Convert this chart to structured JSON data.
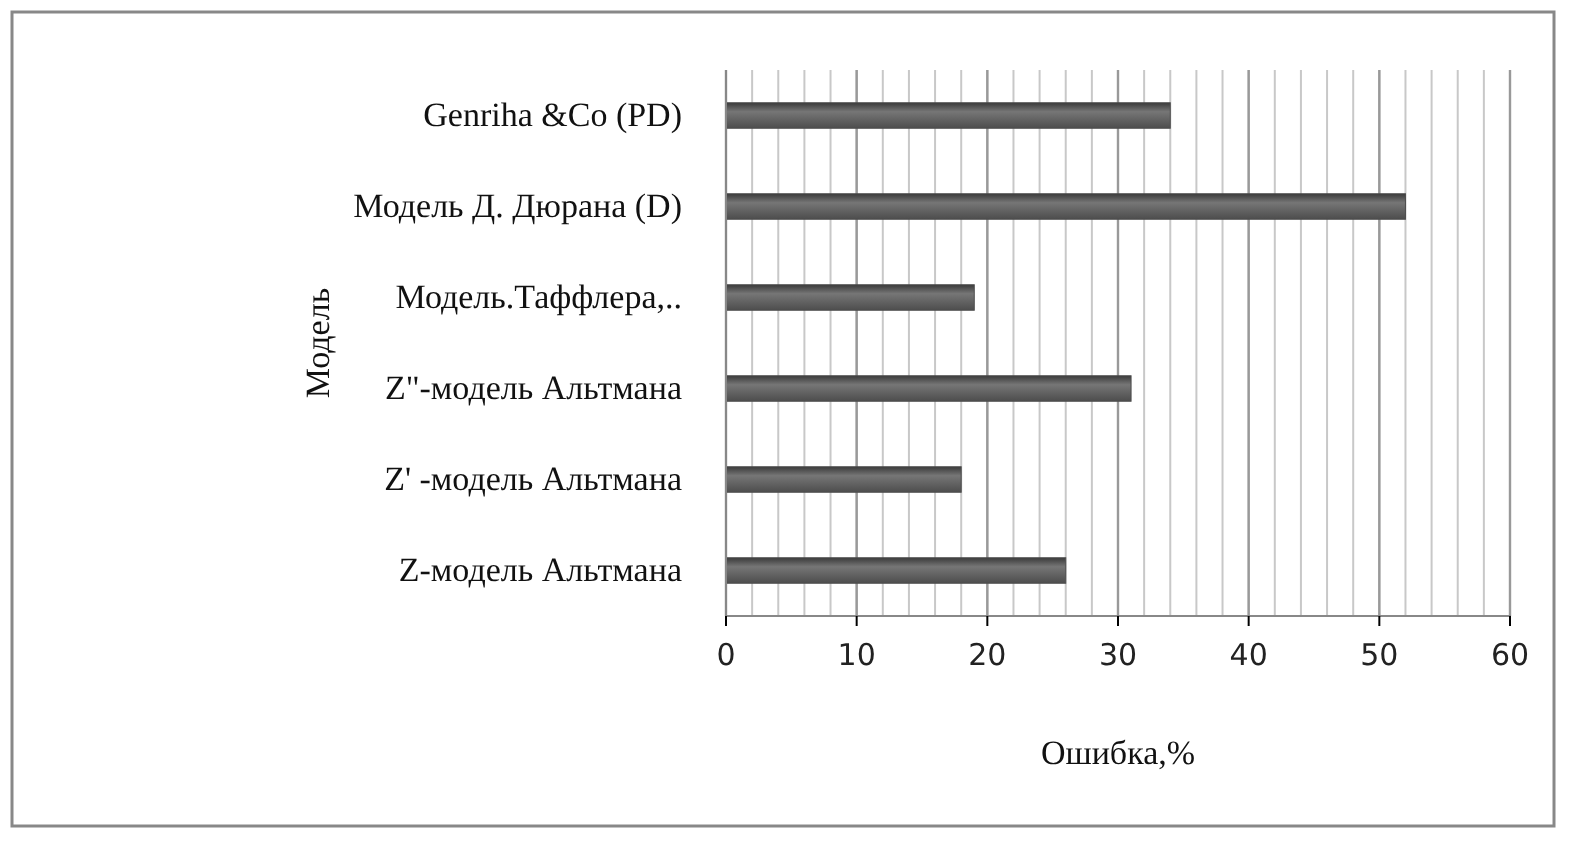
{
  "chart_data": {
    "type": "bar",
    "orientation": "horizontal",
    "xlabel": "Ошибка,%",
    "ylabel": "Модель",
    "categories": [
      "Genriha &Co (PD)",
      "Модель Д. Дюрана (D)",
      "Модель.Таффлера,..",
      "Z\"-модель Альтмана",
      "Z' -модель Альтмана",
      "Z-модель Альтмана"
    ],
    "values": [
      34,
      52,
      19,
      31,
      18,
      26
    ],
    "color": "#4d4d4d",
    "xlim": [
      0,
      60
    ],
    "xticks": [
      0,
      10,
      20,
      30,
      40,
      50,
      60
    ],
    "grid": "x"
  }
}
